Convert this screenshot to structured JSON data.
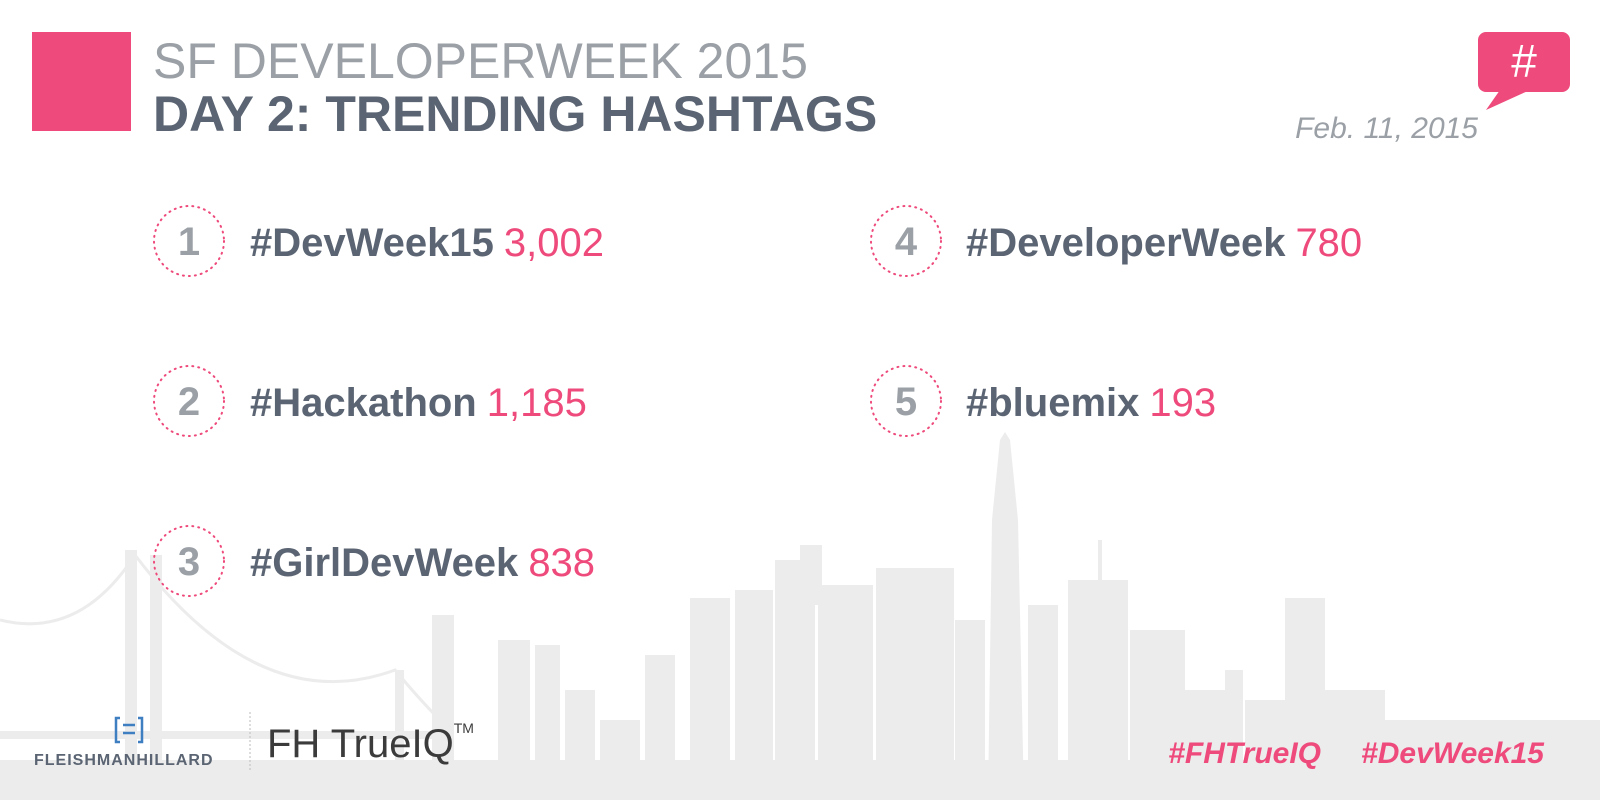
{
  "header": {
    "title": "SF DEVELOPERWEEK 2015",
    "subtitle": "DAY 2: TRENDING HASHTAGS",
    "date": "Feb. 11, 2015",
    "badge": "#"
  },
  "items": [
    {
      "rank": 1,
      "hashtag": "#DevWeek15",
      "count": "3,002"
    },
    {
      "rank": 2,
      "hashtag": "#Hackathon",
      "count": "1,185"
    },
    {
      "rank": 3,
      "hashtag": "#GirlDevWeek",
      "count": "838"
    },
    {
      "rank": 4,
      "hashtag": "#DeveloperWeek",
      "count": "780"
    },
    {
      "rank": 5,
      "hashtag": "#bluemix",
      "count": "193"
    }
  ],
  "footer": {
    "company": "FLEISHMANHILLARD",
    "product": "FH TrueIQ",
    "trademark": "TM",
    "tags": [
      "#FHTrueIQ",
      "#DevWeek15"
    ]
  }
}
